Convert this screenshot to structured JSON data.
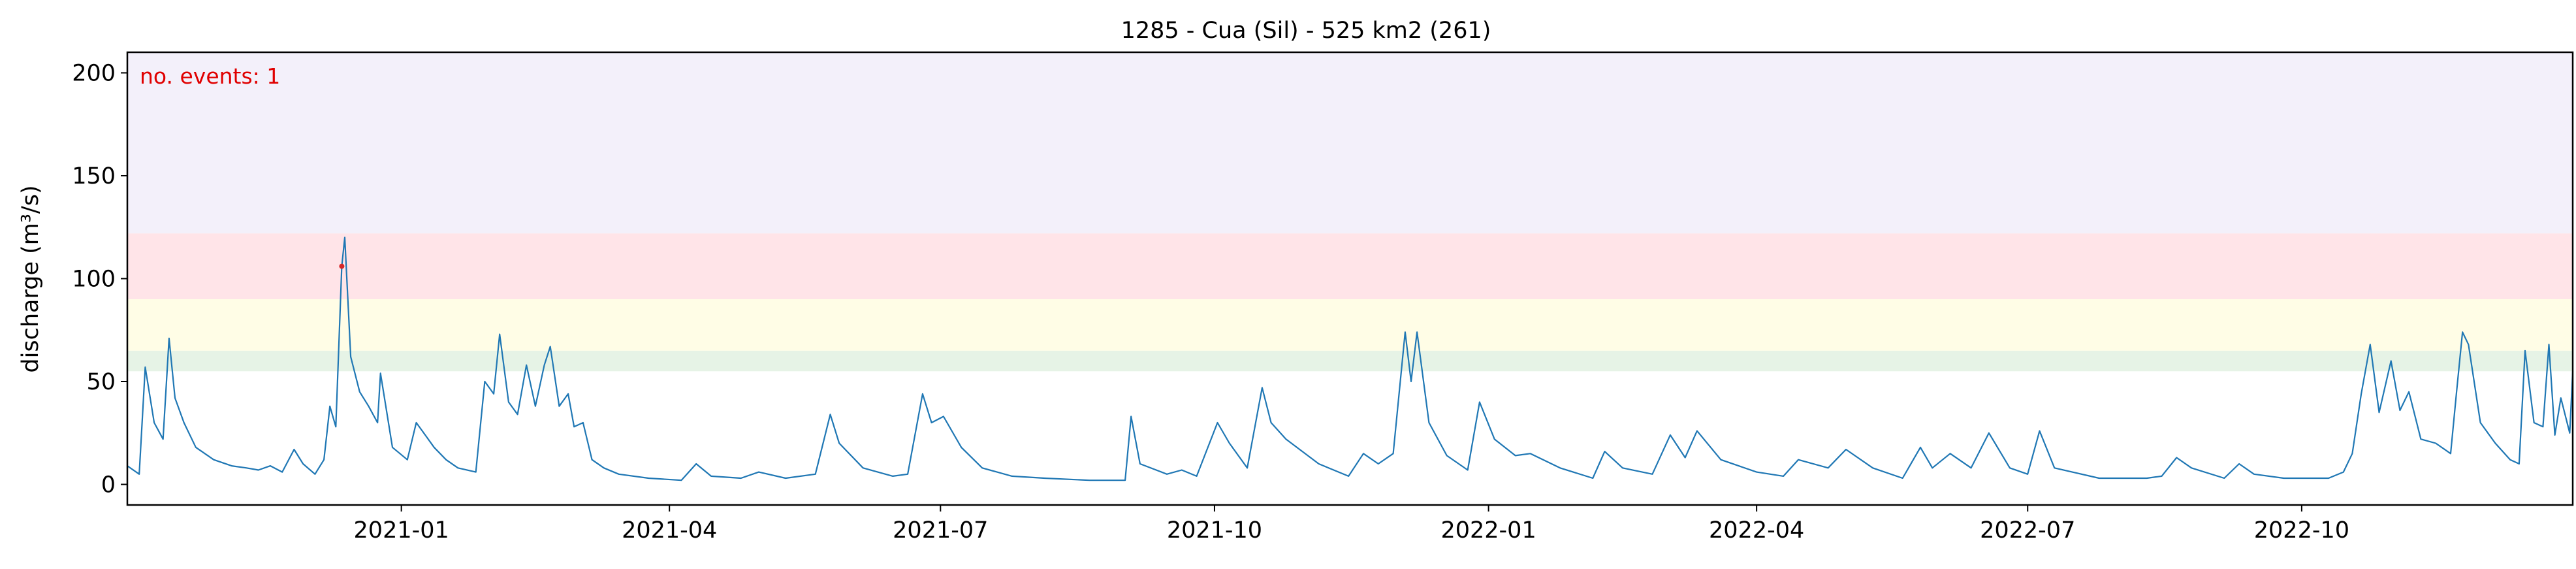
{
  "chart_data": {
    "type": "line",
    "title": "1285 - Cua (Sil) - 525 km2 (261)",
    "xlabel": "",
    "ylabel": "discharge (m³/s)",
    "xlim": [
      "2020-10-01",
      "2022-12-31"
    ],
    "ylim": [
      -10,
      210
    ],
    "yticks": [
      0,
      50,
      100,
      150,
      200
    ],
    "xticks": [
      "2021-01",
      "2021-04",
      "2021-07",
      "2021-10",
      "2022-01",
      "2022-04",
      "2022-07",
      "2022-10"
    ],
    "grid": false,
    "annotation": "no. events: 1",
    "threshold_bands": [
      {
        "from": 55,
        "to": 65,
        "color": "#e6f3e6"
      },
      {
        "from": 65,
        "to": 90,
        "color": "#fffde6"
      },
      {
        "from": 90,
        "to": 122,
        "color": "#ffe4e8"
      },
      {
        "from": 122,
        "to": 210,
        "color": "#f3f0fa"
      }
    ],
    "line_color": "#1f77b4",
    "event_color": "#d62728",
    "events": [
      {
        "x": "2020-12-12",
        "y": 106
      }
    ],
    "series": [
      {
        "values": [
          [
            "2020-10-01",
            9
          ],
          [
            "2020-10-05",
            5
          ],
          [
            "2020-10-07",
            57
          ],
          [
            "2020-10-10",
            30
          ],
          [
            "2020-10-13",
            22
          ],
          [
            "2020-10-15",
            71
          ],
          [
            "2020-10-17",
            42
          ],
          [
            "2020-10-20",
            30
          ],
          [
            "2020-10-24",
            18
          ],
          [
            "2020-10-30",
            12
          ],
          [
            "2020-11-05",
            9
          ],
          [
            "2020-11-10",
            8
          ],
          [
            "2020-11-14",
            7
          ],
          [
            "2020-11-18",
            9
          ],
          [
            "2020-11-22",
            6
          ],
          [
            "2020-11-26",
            17
          ],
          [
            "2020-11-29",
            10
          ],
          [
            "2020-12-03",
            5
          ],
          [
            "2020-12-06",
            12
          ],
          [
            "2020-12-08",
            38
          ],
          [
            "2020-12-10",
            28
          ],
          [
            "2020-12-12",
            106
          ],
          [
            "2020-12-13",
            120
          ],
          [
            "2020-12-15",
            62
          ],
          [
            "2020-12-18",
            45
          ],
          [
            "2020-12-21",
            38
          ],
          [
            "2020-12-24",
            30
          ],
          [
            "2020-12-25",
            54
          ],
          [
            "2020-12-29",
            18
          ],
          [
            "2021-01-03",
            12
          ],
          [
            "2021-01-06",
            30
          ],
          [
            "2021-01-09",
            24
          ],
          [
            "2021-01-12",
            18
          ],
          [
            "2021-01-16",
            12
          ],
          [
            "2021-01-20",
            8
          ],
          [
            "2021-01-26",
            6
          ],
          [
            "2021-01-29",
            50
          ],
          [
            "2021-02-01",
            44
          ],
          [
            "2021-02-03",
            73
          ],
          [
            "2021-02-06",
            40
          ],
          [
            "2021-02-09",
            34
          ],
          [
            "2021-02-12",
            58
          ],
          [
            "2021-02-15",
            38
          ],
          [
            "2021-02-18",
            58
          ],
          [
            "2021-02-20",
            67
          ],
          [
            "2021-02-23",
            38
          ],
          [
            "2021-02-26",
            44
          ],
          [
            "2021-02-28",
            28
          ],
          [
            "2021-03-03",
            30
          ],
          [
            "2021-03-06",
            12
          ],
          [
            "2021-03-10",
            8
          ],
          [
            "2021-03-15",
            5
          ],
          [
            "2021-03-25",
            3
          ],
          [
            "2021-04-05",
            2
          ],
          [
            "2021-04-10",
            10
          ],
          [
            "2021-04-15",
            4
          ],
          [
            "2021-04-25",
            3
          ],
          [
            "2021-05-01",
            6
          ],
          [
            "2021-05-10",
            3
          ],
          [
            "2021-05-20",
            5
          ],
          [
            "2021-05-25",
            34
          ],
          [
            "2021-05-28",
            20
          ],
          [
            "2021-06-05",
            8
          ],
          [
            "2021-06-15",
            4
          ],
          [
            "2021-06-20",
            5
          ],
          [
            "2021-06-25",
            44
          ],
          [
            "2021-06-28",
            30
          ],
          [
            "2021-07-02",
            33
          ],
          [
            "2021-07-08",
            18
          ],
          [
            "2021-07-15",
            8
          ],
          [
            "2021-07-25",
            4
          ],
          [
            "2021-08-05",
            3
          ],
          [
            "2021-08-20",
            2
          ],
          [
            "2021-09-01",
            2
          ],
          [
            "2021-09-03",
            33
          ],
          [
            "2021-09-06",
            10
          ],
          [
            "2021-09-15",
            5
          ],
          [
            "2021-09-20",
            7
          ],
          [
            "2021-09-25",
            4
          ],
          [
            "2021-10-02",
            30
          ],
          [
            "2021-10-06",
            20
          ],
          [
            "2021-10-12",
            8
          ],
          [
            "2021-10-17",
            47
          ],
          [
            "2021-10-20",
            30
          ],
          [
            "2021-10-25",
            22
          ],
          [
            "2021-11-05",
            10
          ],
          [
            "2021-11-15",
            4
          ],
          [
            "2021-11-20",
            15
          ],
          [
            "2021-11-25",
            10
          ],
          [
            "2021-11-30",
            15
          ],
          [
            "2021-12-04",
            74
          ],
          [
            "2021-12-06",
            50
          ],
          [
            "2021-12-08",
            74
          ],
          [
            "2021-12-12",
            30
          ],
          [
            "2021-12-18",
            14
          ],
          [
            "2021-12-25",
            7
          ],
          [
            "2021-12-29",
            40
          ],
          [
            "2022-01-03",
            22
          ],
          [
            "2022-01-10",
            14
          ],
          [
            "2022-01-15",
            15
          ],
          [
            "2022-01-25",
            8
          ],
          [
            "2022-02-05",
            3
          ],
          [
            "2022-02-09",
            16
          ],
          [
            "2022-02-15",
            8
          ],
          [
            "2022-02-25",
            5
          ],
          [
            "2022-03-03",
            24
          ],
          [
            "2022-03-08",
            13
          ],
          [
            "2022-03-12",
            26
          ],
          [
            "2022-03-20",
            12
          ],
          [
            "2022-04-01",
            6
          ],
          [
            "2022-04-10",
            4
          ],
          [
            "2022-04-15",
            12
          ],
          [
            "2022-04-25",
            8
          ],
          [
            "2022-05-01",
            17
          ],
          [
            "2022-05-10",
            8
          ],
          [
            "2022-05-20",
            3
          ],
          [
            "2022-05-26",
            18
          ],
          [
            "2022-05-30",
            8
          ],
          [
            "2022-06-05",
            15
          ],
          [
            "2022-06-12",
            8
          ],
          [
            "2022-06-18",
            25
          ],
          [
            "2022-06-25",
            8
          ],
          [
            "2022-07-01",
            5
          ],
          [
            "2022-07-05",
            26
          ],
          [
            "2022-07-10",
            8
          ],
          [
            "2022-07-25",
            3
          ],
          [
            "2022-08-10",
            3
          ],
          [
            "2022-08-15",
            4
          ],
          [
            "2022-08-20",
            13
          ],
          [
            "2022-08-25",
            8
          ],
          [
            "2022-09-05",
            3
          ],
          [
            "2022-09-10",
            10
          ],
          [
            "2022-09-15",
            5
          ],
          [
            "2022-09-25",
            3
          ],
          [
            "2022-10-10",
            3
          ],
          [
            "2022-10-15",
            6
          ],
          [
            "2022-10-18",
            15
          ],
          [
            "2022-10-21",
            44
          ],
          [
            "2022-10-24",
            68
          ],
          [
            "2022-10-27",
            35
          ],
          [
            "2022-10-31",
            60
          ],
          [
            "2022-11-03",
            36
          ],
          [
            "2022-11-06",
            45
          ],
          [
            "2022-11-10",
            22
          ],
          [
            "2022-11-15",
            20
          ],
          [
            "2022-11-20",
            15
          ],
          [
            "2022-11-22",
            45
          ],
          [
            "2022-11-24",
            74
          ],
          [
            "2022-11-26",
            68
          ],
          [
            "2022-11-30",
            30
          ],
          [
            "2022-12-05",
            20
          ],
          [
            "2022-12-10",
            12
          ],
          [
            "2022-12-13",
            10
          ],
          [
            "2022-12-15",
            65
          ],
          [
            "2022-12-18",
            30
          ],
          [
            "2022-12-21",
            28
          ],
          [
            "2022-12-23",
            68
          ],
          [
            "2022-12-25",
            24
          ],
          [
            "2022-12-27",
            42
          ],
          [
            "2022-12-30",
            25
          ],
          [
            "2022-12-31",
            55
          ]
        ]
      }
    ]
  }
}
